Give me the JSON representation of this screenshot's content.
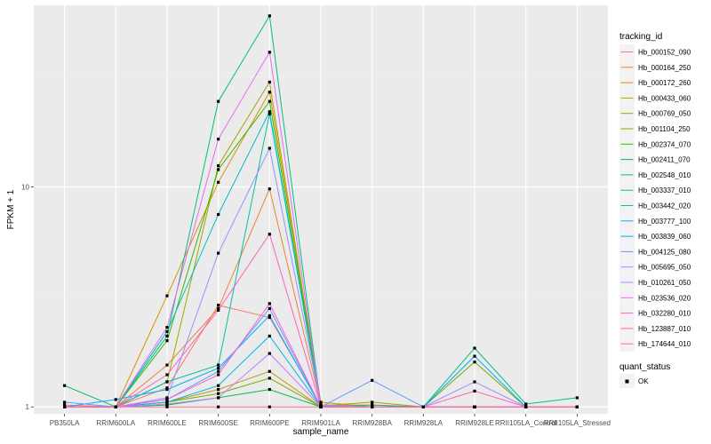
{
  "chart_data": {
    "type": "line",
    "xlabel": "sample_name",
    "ylabel": "FPKM + 1",
    "y_scale": "log10",
    "ylim": [
      0.93,
      67
    ],
    "y_ticks": [
      1,
      10
    ],
    "y_tick_labels": [
      "1",
      "10"
    ],
    "grid": true,
    "legend_placement": "right",
    "categories": [
      "PB350LA",
      "RRIM600LA",
      "RRIM600LE",
      "RRIM600SE",
      "RRIM600PE",
      "RRIM901LA",
      "RRIM928BA",
      "RRIM928LA",
      "RRIM928LE",
      "RRII105LA_Control",
      "RRII105LA_Stressed"
    ],
    "color_legend_title": "tracking_id",
    "point_legend_title": "quant_status",
    "point_legend_label": "OK",
    "series": [
      {
        "name": "Hb_000152_090",
        "color": "#F8766D",
        "values": [
          1.02,
          1.0,
          1.22,
          2.9,
          2.55,
          1.01,
          1.0,
          1.0,
          1.0,
          1.0,
          1.0
        ]
      },
      {
        "name": "Hb_000164_250",
        "color": "#EA8331",
        "values": [
          1.0,
          1.0,
          1.55,
          2.8,
          9.8,
          1.02,
          1.02,
          1.0,
          1.0,
          1.0,
          1.0
        ]
      },
      {
        "name": "Hb_000172_260",
        "color": "#D89000",
        "values": [
          1.0,
          1.0,
          3.2,
          10.5,
          27.0,
          1.05,
          1.0,
          1.0,
          1.0,
          1.0,
          1.0
        ]
      },
      {
        "name": "Hb_000433_060",
        "color": "#C09B00",
        "values": [
          1.0,
          1.0,
          1.05,
          1.2,
          1.45,
          1.0,
          1.0,
          1.0,
          1.0,
          1.0,
          1.0
        ]
      },
      {
        "name": "Hb_000769_050",
        "color": "#A3A500",
        "values": [
          1.0,
          1.0,
          1.3,
          12.5,
          30.0,
          1.01,
          1.05,
          1.0,
          1.0,
          1.0,
          1.0
        ]
      },
      {
        "name": "Hb_001104_250",
        "color": "#7CAE00",
        "values": [
          1.0,
          1.0,
          1.05,
          1.15,
          1.35,
          1.0,
          1.0,
          1.0,
          1.6,
          1.0,
          1.0
        ]
      },
      {
        "name": "Hb_002374_070",
        "color": "#39B600",
        "values": [
          1.0,
          1.0,
          2.0,
          12.0,
          24.5,
          1.02,
          1.0,
          1.0,
          1.0,
          1.0,
          1.0
        ]
      },
      {
        "name": "Hb_002411_070",
        "color": "#00BB4E",
        "values": [
          1.25,
          1.0,
          1.02,
          1.1,
          1.2,
          1.0,
          1.0,
          1.0,
          1.0,
          1.0,
          1.0
        ]
      },
      {
        "name": "Hb_002548_010",
        "color": "#00BF7D",
        "values": [
          1.0,
          1.0,
          2.1,
          24.5,
          60.0,
          1.0,
          1.02,
          1.0,
          1.85,
          1.03,
          1.1
        ]
      },
      {
        "name": "Hb_003337_010",
        "color": "#00C1A3",
        "values": [
          1.0,
          1.0,
          1.3,
          1.55,
          21.5,
          1.0,
          1.0,
          1.0,
          1.0,
          1.0,
          1.0
        ]
      },
      {
        "name": "Hb_003442_020",
        "color": "#00BFC4",
        "values": [
          1.0,
          1.0,
          2.2,
          7.5,
          22.0,
          1.0,
          1.0,
          1.0,
          1.0,
          1.0,
          1.0
        ]
      },
      {
        "name": "Hb_003777_100",
        "color": "#00B9E3",
        "values": [
          1.0,
          1.0,
          1.05,
          1.25,
          2.1,
          1.0,
          1.0,
          1.0,
          1.0,
          1.0,
          1.0
        ]
      },
      {
        "name": "Hb_003839_060",
        "color": "#00ADFA",
        "values": [
          1.0,
          1.08,
          1.2,
          1.5,
          2.6,
          1.0,
          1.0,
          1.0,
          1.7,
          1.0,
          1.0
        ]
      },
      {
        "name": "Hb_004125_080",
        "color": "#619CFF",
        "values": [
          1.05,
          1.0,
          1.08,
          1.45,
          2.8,
          1.0,
          1.32,
          1.0,
          1.0,
          1.0,
          1.0
        ]
      },
      {
        "name": "Hb_005695_050",
        "color": "#9590FF",
        "values": [
          1.0,
          1.0,
          1.1,
          5.0,
          15.0,
          1.02,
          1.0,
          1.0,
          1.3,
          1.0,
          1.0
        ]
      },
      {
        "name": "Hb_010261_050",
        "color": "#C77CFF",
        "values": [
          1.0,
          1.0,
          1.03,
          1.1,
          1.75,
          1.0,
          1.0,
          1.0,
          1.0,
          1.0,
          1.0
        ]
      },
      {
        "name": "Hb_023536_020",
        "color": "#E76BF3",
        "values": [
          1.0,
          1.0,
          2.3,
          16.5,
          41.0,
          1.0,
          1.0,
          1.0,
          1.0,
          1.0,
          1.0
        ]
      },
      {
        "name": "Hb_032280_010",
        "color": "#FA62DB",
        "values": [
          1.0,
          1.0,
          1.08,
          1.4,
          2.95,
          1.0,
          1.0,
          1.0,
          1.0,
          1.0,
          1.0
        ]
      },
      {
        "name": "Hb_123887_010",
        "color": "#FF62BC",
        "values": [
          1.0,
          1.0,
          1.4,
          2.75,
          6.1,
          1.0,
          1.0,
          1.0,
          1.18,
          1.0,
          1.0
        ]
      },
      {
        "name": "Hb_174644_010",
        "color": "#FF6C91",
        "values": [
          1.0,
          1.0,
          1.0,
          1.0,
          1.0,
          1.0,
          1.0,
          1.0,
          1.0,
          1.0,
          1.0
        ]
      }
    ]
  }
}
